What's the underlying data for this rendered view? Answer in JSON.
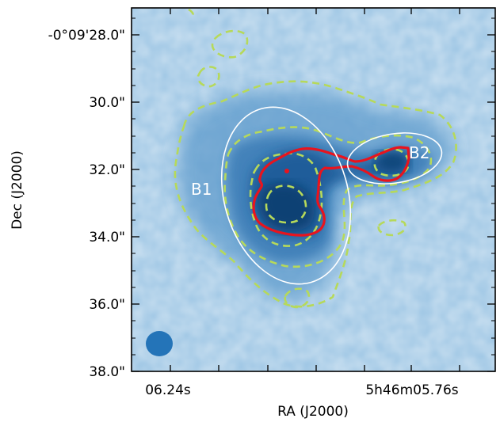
{
  "axes": {
    "xlabel": "RA (J2000)",
    "ylabel": "Dec (J2000)",
    "x_tick_labels": [
      "06.24s",
      "5h46m05.76s"
    ],
    "y_tick_labels": [
      "-0°09'28.0\"",
      "30.0\"",
      "32.0\"",
      "34.0\"",
      "36.0\"",
      "38.0\""
    ]
  },
  "sources": [
    {
      "label": "B1"
    },
    {
      "label": "B2"
    }
  ],
  "colors": {
    "map_background": "#9cc5e4",
    "map_dark": "#0d3f72",
    "contour_dashed": "#b6d95a",
    "contour_red": "#e8141e",
    "ellipse": "#ffffff",
    "beam": "#2474b8"
  }
}
